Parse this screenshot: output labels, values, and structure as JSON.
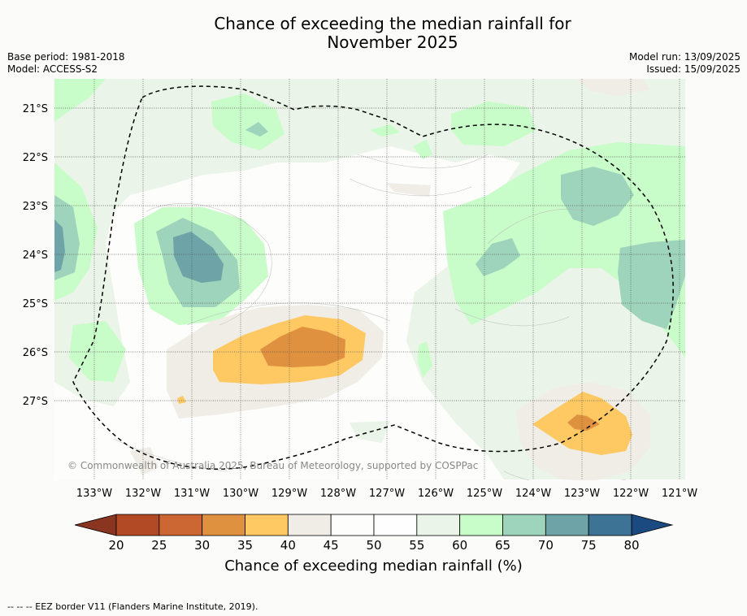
{
  "title_line1": "Chance of exceeding the median rainfall for",
  "title_line2": "November 2025",
  "base_period": "Base period: 1981-2018",
  "model": "Model: ACCESS-S2",
  "model_run": "Model run: 13/09/2025",
  "issued": "Issued: 15/09/2025",
  "copyright": "© Commonwealth of Australia 2025, Bureau of Meteorology, supported by COSPPac",
  "lon_labels": [
    "133°W",
    "132°W",
    "131°W",
    "130°W",
    "129°W",
    "128°W",
    "127°W",
    "126°W",
    "125°W",
    "124°W",
    "123°W",
    "122°W",
    "121°W"
  ],
  "lat_labels": [
    "21°S",
    "22°S",
    "23°S",
    "24°S",
    "25°S",
    "26°S",
    "27°S"
  ],
  "colorbar": {
    "label": "Chance of exceeding median rainfall (%)",
    "ticks": [
      "20",
      "25",
      "30",
      "35",
      "40",
      "45",
      "50",
      "55",
      "60",
      "65",
      "70",
      "75",
      "80"
    ],
    "colors": [
      "#b24a25",
      "#cc6633",
      "#e0913f",
      "#fec863",
      "#efede6",
      "#fdfdfb",
      "#fefefe",
      "#eaf4e8",
      "#c8fcc8",
      "#9ed4bb",
      "#6ea3a8",
      "#3d7394"
    ],
    "under_color": "#8a3520",
    "over_color": "#1a4a80"
  },
  "footer": "--  --  -- EEZ border V11 (Flanders Marine Institute, 2019)."
}
